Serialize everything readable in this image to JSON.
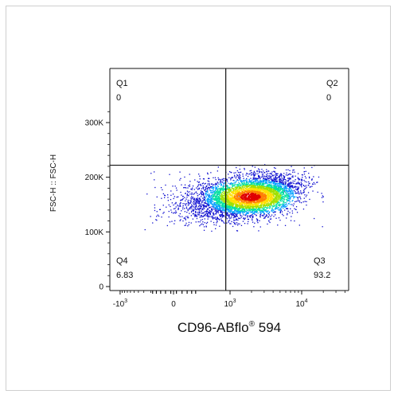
{
  "chart_data": {
    "type": "scatter",
    "subtype": "flow-cytometry-density-dot-plot",
    "title": "",
    "xlabel": "CD96-ABflo",
    "xlabel_superscript": "®",
    "xlabel_suffix": " 594",
    "ylabel": "FSC-H :: FSC-H",
    "x_scale": "biexponential",
    "y_scale": "linear",
    "x_ticks": [
      {
        "value": -1000,
        "base": "-10",
        "exp": "3"
      },
      {
        "value": 0,
        "base": "0",
        "exp": ""
      },
      {
        "value": 1000,
        "base": "10",
        "exp": "3"
      },
      {
        "value": 10000,
        "base": "10",
        "exp": "4"
      }
    ],
    "y_ticks": [
      {
        "value": 0,
        "label": "0"
      },
      {
        "value": 100000,
        "label": "100K"
      },
      {
        "value": 200000,
        "label": "200K"
      },
      {
        "value": 300000,
        "label": "300K"
      }
    ],
    "gates": {
      "x_threshold": 820,
      "y_threshold": 222000
    },
    "quadrants": [
      {
        "name": "Q1",
        "value": "0",
        "position": "top-left"
      },
      {
        "name": "Q2",
        "value": "0",
        "position": "top-right"
      },
      {
        "name": "Q3",
        "value": "93.2",
        "position": "bottom-right"
      },
      {
        "name": "Q4",
        "value": "6.83",
        "position": "bottom-left"
      }
    ],
    "population": {
      "x_center": 1900,
      "y_center": 165000,
      "y_spread": 18000,
      "x_range": [
        -300,
        19000
      ],
      "density_colors": [
        "#1010d0",
        "#00a0ff",
        "#00e0a0",
        "#a0e000",
        "#ffe000",
        "#ff8000",
        "#e00000"
      ]
    }
  }
}
